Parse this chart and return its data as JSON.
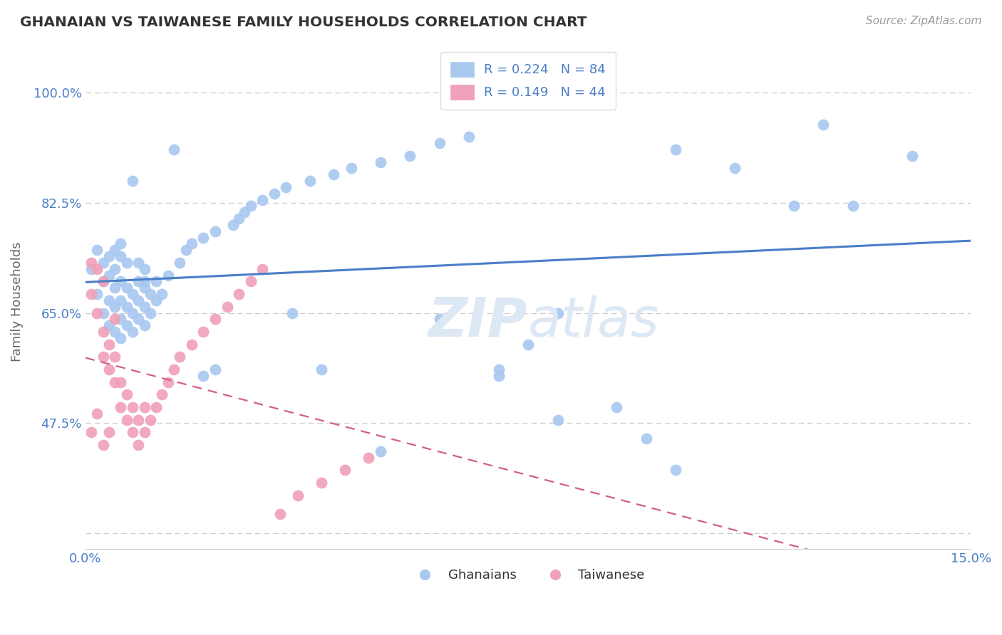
{
  "title": "GHANAIAN VS TAIWANESE FAMILY HOUSEHOLDS CORRELATION CHART",
  "source_text": "Source: ZipAtlas.com",
  "ylabel": "Family Households",
  "xlim": [
    0.0,
    0.15
  ],
  "ylim": [
    0.275,
    1.06
  ],
  "xtick_vals": [
    0.0,
    0.025,
    0.05,
    0.075,
    0.1,
    0.125,
    0.15
  ],
  "xticklabels": [
    "0.0%",
    "",
    "",
    "",
    "",
    "",
    "15.0%"
  ],
  "ytick_vals": [
    0.3,
    0.475,
    0.65,
    0.825,
    1.0
  ],
  "yticklabels": [
    "",
    "47.5%",
    "65.0%",
    "82.5%",
    "100.0%"
  ],
  "blue_scatter_color": "#a8c8f0",
  "pink_scatter_color": "#f0a0b8",
  "trend_blue": "#4a7ec8",
  "trend_pink": "#d06080",
  "legend_text_color": "#4a7ec8",
  "axis_label_color": "#4a7ec8",
  "grid_color": "#cccccc",
  "title_color": "#333333",
  "source_color": "#999999",
  "watermark_color": "#dde8f5",
  "legend_r_blue": "R = 0.224",
  "legend_n_blue": "N = 84",
  "legend_r_pink": "R = 0.149",
  "legend_n_pink": "N = 44",
  "label_blue": "Ghanaians",
  "label_pink": "Taiwanese",
  "g_x": [
    0.001,
    0.002,
    0.002,
    0.003,
    0.003,
    0.003,
    0.004,
    0.004,
    0.004,
    0.004,
    0.005,
    0.005,
    0.005,
    0.005,
    0.006,
    0.006,
    0.006,
    0.006,
    0.006,
    0.006,
    0.007,
    0.007,
    0.007,
    0.007,
    0.008,
    0.008,
    0.008,
    0.009,
    0.009,
    0.009,
    0.009,
    0.01,
    0.01,
    0.01,
    0.01,
    0.011,
    0.011,
    0.012,
    0.012,
    0.013,
    0.014,
    0.016,
    0.017,
    0.018,
    0.02,
    0.022,
    0.025,
    0.026,
    0.027,
    0.028,
    0.03,
    0.032,
    0.034,
    0.038,
    0.042,
    0.045,
    0.05,
    0.055,
    0.06,
    0.065,
    0.07,
    0.075,
    0.08,
    0.09,
    0.095,
    0.1,
    0.11,
    0.125,
    0.13,
    0.14,
    0.008,
    0.015,
    0.022,
    0.035,
    0.05,
    0.06,
    0.07,
    0.08,
    0.1,
    0.12,
    0.005,
    0.01,
    0.02,
    0.04
  ],
  "g_y": [
    0.72,
    0.68,
    0.75,
    0.65,
    0.7,
    0.73,
    0.63,
    0.67,
    0.71,
    0.74,
    0.62,
    0.66,
    0.69,
    0.72,
    0.61,
    0.64,
    0.67,
    0.7,
    0.74,
    0.76,
    0.63,
    0.66,
    0.69,
    0.73,
    0.62,
    0.65,
    0.68,
    0.64,
    0.67,
    0.7,
    0.73,
    0.63,
    0.66,
    0.69,
    0.72,
    0.65,
    0.68,
    0.67,
    0.7,
    0.68,
    0.71,
    0.73,
    0.75,
    0.76,
    0.77,
    0.78,
    0.79,
    0.8,
    0.81,
    0.82,
    0.83,
    0.84,
    0.85,
    0.86,
    0.87,
    0.88,
    0.89,
    0.9,
    0.92,
    0.93,
    0.55,
    0.6,
    0.65,
    0.5,
    0.45,
    0.4,
    0.88,
    0.95,
    0.82,
    0.9,
    0.86,
    0.91,
    0.56,
    0.65,
    0.43,
    0.64,
    0.56,
    0.48,
    0.91,
    0.82,
    0.75,
    0.7,
    0.55,
    0.56
  ],
  "t_x": [
    0.001,
    0.001,
    0.002,
    0.002,
    0.003,
    0.003,
    0.003,
    0.004,
    0.004,
    0.005,
    0.005,
    0.005,
    0.006,
    0.006,
    0.007,
    0.007,
    0.008,
    0.008,
    0.009,
    0.009,
    0.01,
    0.01,
    0.011,
    0.012,
    0.013,
    0.014,
    0.015,
    0.016,
    0.018,
    0.02,
    0.022,
    0.024,
    0.026,
    0.028,
    0.03,
    0.033,
    0.036,
    0.04,
    0.044,
    0.048,
    0.001,
    0.002,
    0.003,
    0.004
  ],
  "t_y": [
    0.73,
    0.68,
    0.72,
    0.65,
    0.7,
    0.58,
    0.62,
    0.56,
    0.6,
    0.54,
    0.58,
    0.64,
    0.5,
    0.54,
    0.48,
    0.52,
    0.46,
    0.5,
    0.44,
    0.48,
    0.46,
    0.5,
    0.48,
    0.5,
    0.52,
    0.54,
    0.56,
    0.58,
    0.6,
    0.62,
    0.64,
    0.66,
    0.68,
    0.7,
    0.72,
    0.33,
    0.36,
    0.38,
    0.4,
    0.42,
    0.46,
    0.49,
    0.44,
    0.46
  ]
}
